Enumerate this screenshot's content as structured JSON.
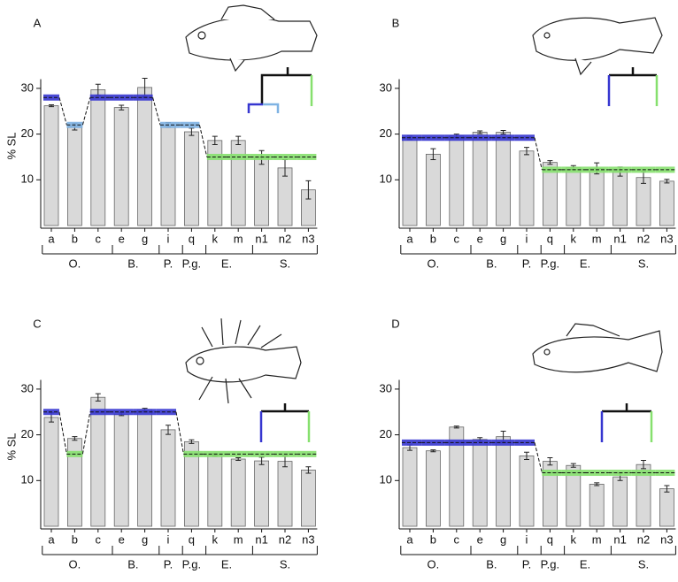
{
  "chart_data": [
    {
      "type": "bar",
      "panel": "A",
      "ylabel": "% SL",
      "groups": [
        {
          "label": "O.",
          "categories": [
            "a",
            "b",
            "c"
          ]
        },
        {
          "label": "B.",
          "categories": [
            "e",
            "g"
          ]
        },
        {
          "label": "P.",
          "categories": [
            "i"
          ]
        },
        {
          "label": "P.g.",
          "categories": [
            "q"
          ]
        },
        {
          "label": "E.",
          "categories": [
            "k",
            "m"
          ]
        },
        {
          "label": "S.",
          "categories": [
            "n1",
            "n2",
            "n3"
          ]
        }
      ],
      "values": [
        26.2,
        21.6,
        29.7,
        25.8,
        30.2,
        22,
        20.5,
        18.6,
        18.6,
        14.9,
        12.6,
        7.8
      ],
      "errors": [
        0.2,
        0.7,
        1.2,
        0.5,
        2,
        0.5,
        0.8,
        0.9,
        0.9,
        1.5,
        1.8,
        2
      ],
      "color": "#d9d9d9",
      "fit": {
        "values": [
          28,
          22,
          28,
          28,
          28,
          22,
          22,
          15,
          15,
          15,
          15,
          15
        ],
        "colors": [
          "#3636d0",
          "#7fb3e3",
          "#3636d0",
          "#3636d0",
          "#3636d0",
          "#7fb3e3",
          "#7fb3e3",
          "#86e06e",
          "#86e06e",
          "#86e06e",
          "#86e06e",
          "#86e06e"
        ]
      },
      "ylim": [
        0,
        32
      ],
      "yticks": [
        10,
        20,
        30
      ]
    },
    {
      "type": "bar",
      "panel": "B",
      "groups": [
        {
          "label": "O.",
          "categories": [
            "a",
            "b",
            "c"
          ]
        },
        {
          "label": "B.",
          "categories": [
            "e",
            "g"
          ]
        },
        {
          "label": "P.",
          "categories": [
            "i"
          ]
        },
        {
          "label": "P.g.",
          "categories": [
            "q"
          ]
        },
        {
          "label": "E.",
          "categories": [
            "k",
            "m"
          ]
        },
        {
          "label": "S.",
          "categories": [
            "n1",
            "n2",
            "n3"
          ]
        }
      ],
      "values": [
        19.2,
        15.6,
        19.6,
        20.4,
        20.4,
        16.3,
        13.8,
        12.7,
        12.5,
        11.8,
        10.5,
        9.7
      ],
      "errors": [
        0.4,
        1.2,
        0.4,
        0.3,
        0.4,
        0.8,
        0.4,
        0.4,
        1.2,
        1,
        1.3,
        0.4
      ],
      "color": "#d9d9d9",
      "fit": {
        "values": [
          19.2,
          19.2,
          19.2,
          19.2,
          19.2,
          19.2,
          12.2,
          12.2,
          12.2,
          12.2,
          12.2,
          12.2
        ],
        "colors": [
          "#3636d0",
          "#3636d0",
          "#3636d0",
          "#3636d0",
          "#3636d0",
          "#3636d0",
          "#86e06e",
          "#86e06e",
          "#86e06e",
          "#86e06e",
          "#86e06e",
          "#86e06e"
        ]
      },
      "ylim": [
        0,
        32
      ],
      "yticks": [
        10,
        20,
        30
      ]
    },
    {
      "type": "bar",
      "panel": "C",
      "ylabel": "% SL",
      "groups": [
        {
          "label": "O.",
          "categories": [
            "a",
            "b",
            "c"
          ]
        },
        {
          "label": "B.",
          "categories": [
            "e",
            "g"
          ]
        },
        {
          "label": "P.",
          "categories": [
            "i"
          ]
        },
        {
          "label": "P.g.",
          "categories": [
            "q"
          ]
        },
        {
          "label": "E.",
          "categories": [
            "k",
            "m"
          ]
        },
        {
          "label": "S.",
          "categories": [
            "n1",
            "n2",
            "n3"
          ]
        }
      ],
      "values": [
        23.8,
        19.2,
        28.2,
        24.5,
        25.5,
        21.1,
        18.5,
        15.6,
        14.7,
        14.3,
        14.2,
        12.3
      ],
      "errors": [
        1,
        0.4,
        0.8,
        0.3,
        0.3,
        1,
        0.4,
        0.3,
        0.3,
        0.8,
        1.2,
        0.7
      ],
      "color": "#d9d9d9",
      "fit": {
        "values": [
          25,
          15.8,
          25,
          25,
          25,
          25,
          15.8,
          15.8,
          15.8,
          15.8,
          15.8,
          15.8
        ],
        "colors": [
          "#3636d0",
          "#86e06e",
          "#3636d0",
          "#3636d0",
          "#3636d0",
          "#3636d0",
          "#86e06e",
          "#86e06e",
          "#86e06e",
          "#86e06e",
          "#86e06e",
          "#86e06e"
        ]
      },
      "ylim": [
        0,
        32
      ],
      "yticks": [
        10,
        20,
        30
      ]
    },
    {
      "type": "bar",
      "panel": "D",
      "groups": [
        {
          "label": "O.",
          "categories": [
            "a",
            "b",
            "c"
          ]
        },
        {
          "label": "B.",
          "categories": [
            "e",
            "g"
          ]
        },
        {
          "label": "P.",
          "categories": [
            "i"
          ]
        },
        {
          "label": "P.g.",
          "categories": [
            "q"
          ]
        },
        {
          "label": "E.",
          "categories": [
            "k",
            "m"
          ]
        },
        {
          "label": "S.",
          "categories": [
            "n1",
            "n2",
            "n3"
          ]
        }
      ],
      "values": [
        17.2,
        16.5,
        21.7,
        19,
        19.6,
        15.4,
        14.2,
        13.3,
        9.2,
        10.8,
        13.5,
        8.2
      ],
      "errors": [
        0.6,
        0.2,
        0.2,
        0.4,
        1.2,
        0.8,
        0.8,
        0.4,
        0.3,
        0.8,
        0.9,
        0.7
      ],
      "color": "#d9d9d9",
      "fit": {
        "values": [
          18.3,
          18.3,
          18.3,
          18.3,
          18.3,
          18.3,
          11.7,
          11.7,
          11.7,
          11.7,
          11.7,
          11.7
        ],
        "colors": [
          "#3636d0",
          "#3636d0",
          "#3636d0",
          "#3636d0",
          "#3636d0",
          "#3636d0",
          "#86e06e",
          "#86e06e",
          "#86e06e",
          "#86e06e",
          "#86e06e",
          "#86e06e"
        ]
      },
      "ylim": [
        0,
        32
      ],
      "yticks": [
        10,
        20,
        30
      ]
    }
  ]
}
